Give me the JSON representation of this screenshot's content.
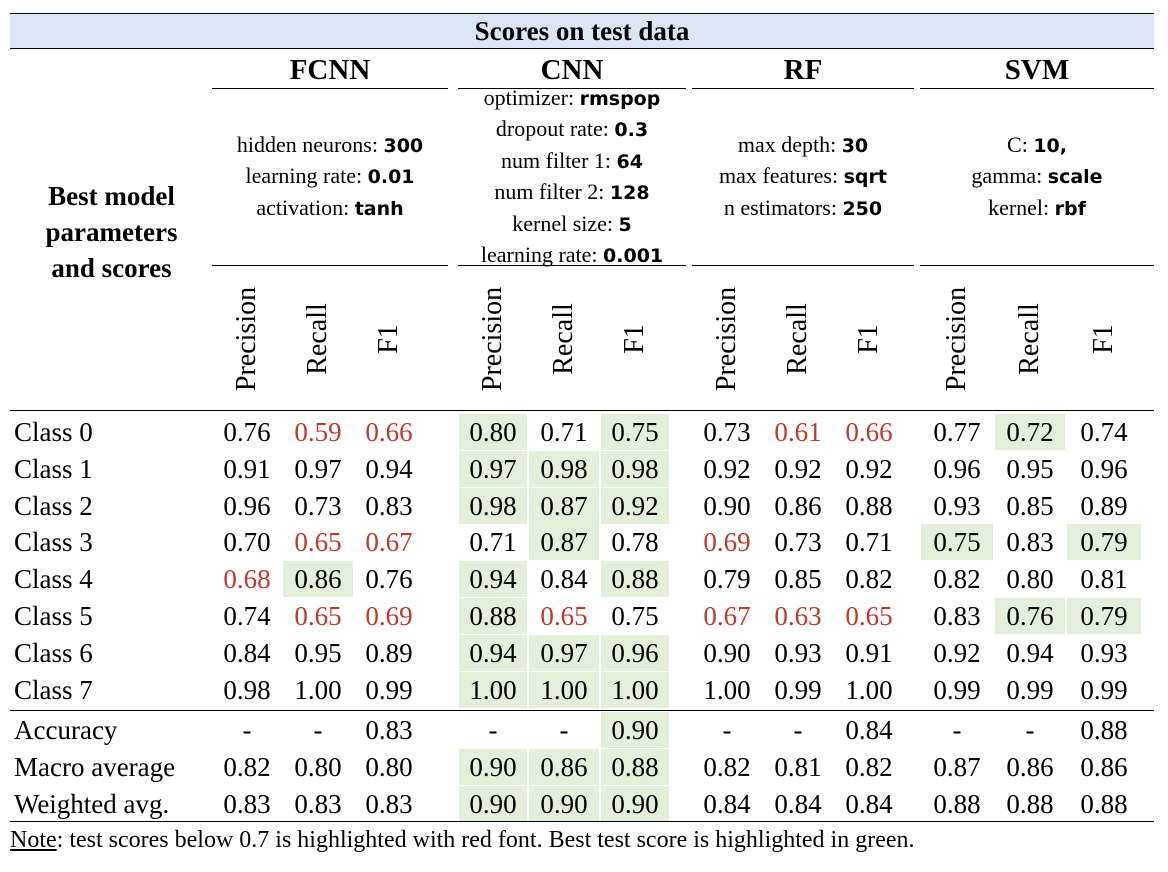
{
  "title": "Scores on test data",
  "row_header_label": [
    "Best model",
    "parameters",
    "and scores"
  ],
  "metrics": [
    "Precision",
    "Recall",
    "F1"
  ],
  "models": [
    {
      "name": "FCNN",
      "params": [
        [
          "hidden neurons: ",
          "300"
        ],
        [
          "learning rate: ",
          "0.01"
        ],
        [
          "activation: ",
          "tanh"
        ]
      ]
    },
    {
      "name": "CNN",
      "params": [
        [
          "optimizer: ",
          "rmspop"
        ],
        [
          "dropout rate: ",
          "0.3"
        ],
        [
          "num filter 1: ",
          "64"
        ],
        [
          "num filter 2: ",
          "128"
        ],
        [
          "kernel size: ",
          "5"
        ],
        [
          "learning rate: ",
          "0.001"
        ]
      ]
    },
    {
      "name": "RF",
      "params": [
        [
          "max depth: ",
          "30"
        ],
        [
          "max features: ",
          "sqrt"
        ],
        [
          "n estimators: ",
          "250"
        ]
      ]
    },
    {
      "name": "SVM",
      "params": [
        [
          "C: ",
          "10,"
        ],
        [
          "gamma: ",
          "scale"
        ],
        [
          "kernel: ",
          "rbf"
        ]
      ]
    }
  ],
  "rows": [
    {
      "label": "Class 0",
      "values": [
        "0.76",
        "0.59",
        "0.66",
        "0.80",
        "0.71",
        "0.75",
        "0.73",
        "0.61",
        "0.66",
        "0.77",
        "0.72",
        "0.74"
      ],
      "red": [
        1,
        2,
        7,
        8
      ],
      "green": [
        3,
        5,
        10
      ]
    },
    {
      "label": "Class 1",
      "values": [
        "0.91",
        "0.97",
        "0.94",
        "0.97",
        "0.98",
        "0.98",
        "0.92",
        "0.92",
        "0.92",
        "0.96",
        "0.95",
        "0.96"
      ],
      "red": [],
      "green": [
        3,
        4,
        5
      ]
    },
    {
      "label": "Class 2",
      "values": [
        "0.96",
        "0.73",
        "0.83",
        "0.98",
        "0.87",
        "0.92",
        "0.90",
        "0.86",
        "0.88",
        "0.93",
        "0.85",
        "0.89"
      ],
      "red": [],
      "green": [
        3,
        4,
        5
      ]
    },
    {
      "label": "Class 3",
      "values": [
        "0.70",
        "0.65",
        "0.67",
        "0.71",
        "0.87",
        "0.78",
        "0.69",
        "0.73",
        "0.71",
        "0.75",
        "0.83",
        "0.79"
      ],
      "red": [
        1,
        2,
        6
      ],
      "green": [
        4,
        9,
        11
      ]
    },
    {
      "label": "Class 4",
      "values": [
        "0.68",
        "0.86",
        "0.76",
        "0.94",
        "0.84",
        "0.88",
        "0.79",
        "0.85",
        "0.82",
        "0.82",
        "0.80",
        "0.81"
      ],
      "red": [
        0
      ],
      "green": [
        1,
        3,
        5
      ]
    },
    {
      "label": "Class 5",
      "values": [
        "0.74",
        "0.65",
        "0.69",
        "0.88",
        "0.65",
        "0.75",
        "0.67",
        "0.63",
        "0.65",
        "0.83",
        "0.76",
        "0.79"
      ],
      "red": [
        1,
        2,
        4,
        6,
        7,
        8
      ],
      "green": [
        3,
        10,
        11
      ]
    },
    {
      "label": "Class 6",
      "values": [
        "0.84",
        "0.95",
        "0.89",
        "0.94",
        "0.97",
        "0.96",
        "0.90",
        "0.93",
        "0.91",
        "0.92",
        "0.94",
        "0.93"
      ],
      "red": [],
      "green": [
        3,
        4,
        5
      ]
    },
    {
      "label": "Class 7",
      "values": [
        "0.98",
        "1.00",
        "0.99",
        "1.00",
        "1.00",
        "1.00",
        "1.00",
        "0.99",
        "1.00",
        "0.99",
        "0.99",
        "0.99"
      ],
      "red": [],
      "green": [
        3,
        4,
        5
      ]
    }
  ],
  "summary_rows": [
    {
      "label": "Accuracy",
      "values": [
        "-",
        "-",
        "0.83",
        "-",
        "-",
        "0.90",
        "-",
        "-",
        "0.84",
        "-",
        "-",
        "0.88"
      ],
      "red": [],
      "green": [
        5
      ]
    },
    {
      "label": "Macro average",
      "values": [
        "0.82",
        "0.80",
        "0.80",
        "0.90",
        "0.86",
        "0.88",
        "0.82",
        "0.81",
        "0.82",
        "0.87",
        "0.86",
        "0.86"
      ],
      "red": [],
      "green": [
        3,
        4,
        5
      ]
    },
    {
      "label": "Weighted avg.",
      "values": [
        "0.83",
        "0.83",
        "0.83",
        "0.90",
        "0.90",
        "0.90",
        "0.84",
        "0.84",
        "0.84",
        "0.88",
        "0.88",
        "0.88"
      ],
      "red": [],
      "green": [
        3,
        4,
        5
      ]
    }
  ],
  "note": {
    "label": "Note",
    "text": ": test scores below 0.7 is highlighted with red font. Best test score is highlighted in green."
  },
  "colors": {
    "header_bg": "#dce6f2",
    "highlight_green": "#e2efda",
    "red_font": "#c0392b"
  }
}
